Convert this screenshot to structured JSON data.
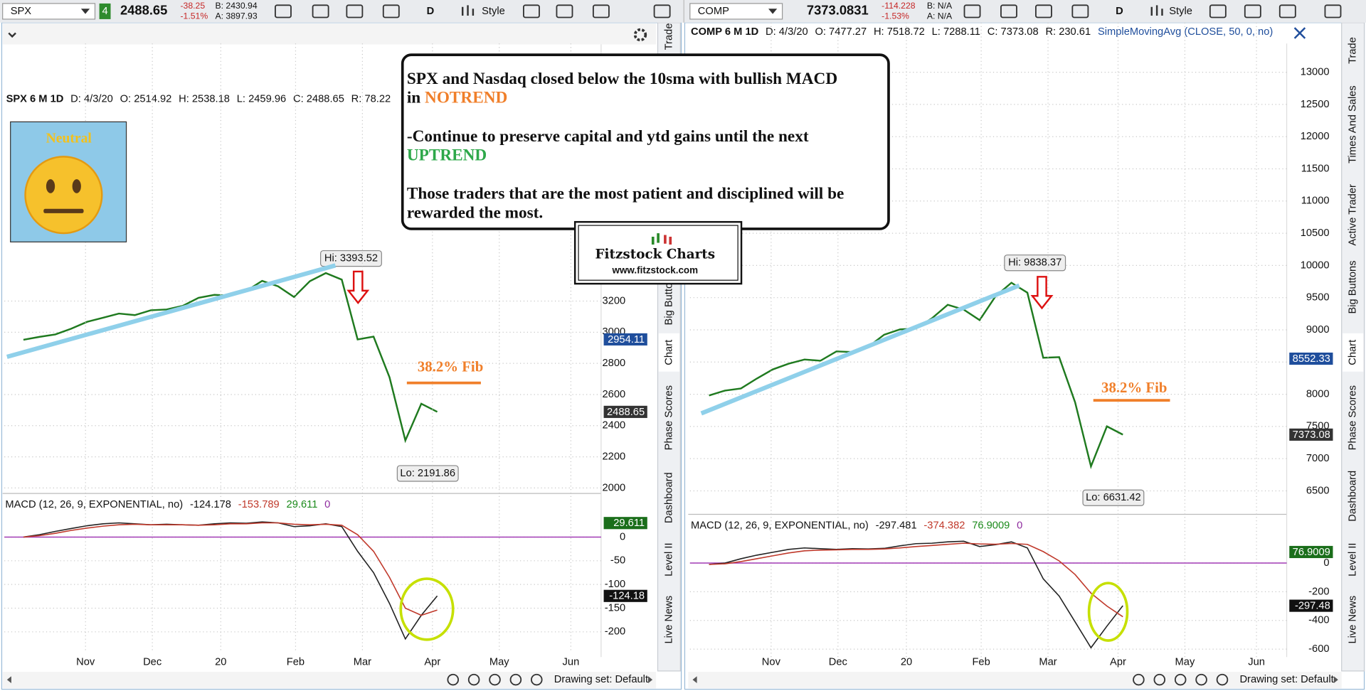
{
  "toolbars": [
    {
      "symbol": "SPX",
      "link": "4",
      "last": "2488.65",
      "change": "-38.25",
      "change_pct": "-1.51%",
      "bid": "B: 2430.94",
      "ask": "A: 3897.93",
      "period": "D",
      "style": "Style"
    },
    {
      "symbol": "COMP",
      "last": "7373.0831",
      "change": "-114.228",
      "change_pct": "-1.53%",
      "bid": "B: N/A",
      "ask": "A: N/A",
      "period": "D",
      "style": "Style"
    }
  ],
  "note": {
    "line1": "SPX and Nasdaq closed below the 10sma with bullish MACD",
    "line2_prefix": "in",
    "notrend": "NOTREND",
    "line3": "-Continue to preserve capital and ytd gains until the next",
    "uptrend": "UPTREND",
    "line5": "Those traders that are the most patient and disciplined will be",
    "line6": "rewarded the most."
  },
  "logo": {
    "title": "Fitzstock Charts",
    "url": "www.fitzstock.com"
  },
  "mood": "Neutral",
  "side_tabs": [
    [
      "Trade",
      "Big Buttons",
      "Chart",
      "Phase Scores",
      "Dashboard",
      "Level II",
      "Live News"
    ],
    [
      "Trade",
      "Times And Sales",
      "Active Trader",
      "Big Buttons",
      "Chart",
      "Phase Scores",
      "Dashboard",
      "Level II",
      "Live News"
    ]
  ],
  "drawing_set": [
    "Drawing set: Default",
    "Drawing set: Default"
  ],
  "chart_data": [
    {
      "type": "line",
      "title": "SPX 6 M 1D",
      "readouts": [
        "D: 4/3/20",
        "O: 2514.92",
        "H: 2538.18",
        "L: 2459.96",
        "C: 2488.65",
        "R: 78.22"
      ],
      "annotations": [
        "Hi: 3393.52",
        "Lo: 2191.86",
        "38.2% Fib"
      ],
      "x": [
        0,
        1,
        2,
        3,
        4,
        5,
        6,
        7,
        8,
        9,
        10,
        11,
        12,
        13,
        14,
        15,
        16,
        17,
        18,
        19,
        20,
        21,
        22,
        23,
        24,
        25,
        26
      ],
      "series": [
        {
          "color": "#1f7a1f",
          "values": [
            2952,
            2970,
            2986,
            3023,
            3067,
            3093,
            3120,
            3110,
            3141,
            3146,
            3169,
            3221,
            3240,
            3235,
            3265,
            3330,
            3295,
            3226,
            3328,
            3380,
            3338,
            2954,
            2972,
            2711,
            2305,
            2541,
            2489
          ]
        }
      ],
      "xlim": [
        -1.2,
        36.3
      ],
      "ylim": [
        1976,
        4407
      ],
      "yticks": [
        2000,
        2200,
        2400,
        2600,
        2800,
        3000,
        3200
      ],
      "badges": [
        {
          "value": 2954.11,
          "label": "2954.11",
          "color": "#1f4e9c"
        },
        {
          "value": 2488.65,
          "label": "2488.65",
          "color": "#333333"
        }
      ]
    },
    {
      "type": "line",
      "title": "MACD (12, 26, 9, EXPONENTIAL, no)",
      "readouts": [
        "-124.178",
        "-153.789",
        "29.611",
        "0"
      ],
      "x": [
        0,
        1,
        2,
        3,
        4,
        5,
        6,
        7,
        8,
        9,
        10,
        11,
        12,
        13,
        14,
        15,
        16,
        17,
        18,
        19,
        20,
        21,
        22,
        23,
        24,
        25,
        26
      ],
      "series": [
        {
          "color": "#222222",
          "values": [
            0,
            5,
            12,
            18,
            24,
            28,
            30,
            28,
            26,
            27,
            26,
            25,
            28,
            30,
            29,
            32,
            30,
            22,
            24,
            28,
            22,
            -30,
            -75,
            -140,
            -215,
            -165,
            -124
          ]
        },
        {
          "color": "#c0392b",
          "values": [
            0,
            3,
            8,
            14,
            19,
            23,
            26,
            27,
            26,
            26,
            26,
            25,
            26,
            28,
            28,
            30,
            30,
            27,
            26,
            27,
            25,
            5,
            -30,
            -85,
            -150,
            -165,
            -154
          ]
        }
      ],
      "xlim": [
        -1.2,
        36.3
      ],
      "ylim": [
        -244,
        59
      ],
      "yticks": [
        -200,
        -150,
        -100,
        -50,
        0
      ],
      "xticks": [
        {
          "value": 3.9,
          "label": "Nov"
        },
        {
          "value": 8.1,
          "label": "Dec"
        },
        {
          "value": 12.4,
          "label": "20"
        },
        {
          "value": 17.1,
          "label": "Feb"
        },
        {
          "value": 21.3,
          "label": "Mar"
        },
        {
          "value": 25.7,
          "label": "Apr"
        },
        {
          "value": 29.9,
          "label": "May"
        },
        {
          "value": 34.4,
          "label": "Jun"
        }
      ],
      "badges": [
        {
          "value": 29.611,
          "label": "29.611",
          "color": "#1a6e1a"
        },
        {
          "value": -124.18,
          "label": "-124.18",
          "color": "#111111"
        }
      ]
    },
    {
      "type": "line",
      "title": "COMP 6 M 1D",
      "readouts": [
        "D: 4/3/20",
        "O: 7477.27",
        "H: 7518.72",
        "L: 7288.11",
        "C: 7373.08",
        "R: 230.61",
        "SimpleMovingAvg (CLOSE, 50, 0, no)"
      ],
      "annotations": [
        "Hi: 9838.37",
        "Lo: 6631.42",
        "38.2% Fib"
      ],
      "x": [
        0,
        1,
        2,
        3,
        4,
        5,
        6,
        7,
        8,
        9,
        10,
        11,
        12,
        13,
        14,
        15,
        16,
        17,
        18,
        19,
        20,
        21,
        22,
        23,
        24,
        25,
        26
      ],
      "series": [
        {
          "color": "#1f7a1f",
          "values": [
            7982,
            8057,
            8090,
            8243,
            8386,
            8475,
            8540,
            8520,
            8665,
            8656,
            8735,
            8925,
            9007,
            9020,
            9179,
            9389,
            9315,
            9151,
            9520,
            9731,
            9577,
            8567,
            8576,
            7875,
            6880,
            7502,
            7373
          ]
        }
      ],
      "xlim": [
        -1.2,
        36.3
      ],
      "ylim": [
        6176,
        13446
      ],
      "yticks": [
        6500,
        7000,
        7500,
        8000,
        8500,
        9000,
        9500,
        10000,
        10500,
        11000,
        11500,
        12000,
        12500,
        13000
      ],
      "badges": [
        {
          "value": 8552.33,
          "label": "8552.33",
          "color": "#1f4e9c"
        },
        {
          "value": 7373.08,
          "label": "7373.08",
          "color": "#333333"
        }
      ]
    },
    {
      "type": "line",
      "title": "MACD (12, 26, 9, EXPONENTIAL, no)",
      "readouts": [
        "-297.481",
        "-374.382",
        "76.9009",
        "0"
      ],
      "x": [
        0,
        1,
        2,
        3,
        4,
        5,
        6,
        7,
        8,
        9,
        10,
        11,
        12,
        13,
        14,
        15,
        16,
        17,
        18,
        19,
        20,
        21,
        22,
        23,
        24,
        25,
        26
      ],
      "series": [
        {
          "color": "#222222",
          "values": [
            -10,
            0,
            30,
            55,
            75,
            95,
            105,
            100,
            95,
            100,
            98,
            102,
            120,
            135,
            138,
            148,
            152,
            115,
            128,
            148,
            105,
            -110,
            -230,
            -410,
            -590,
            -440,
            -297
          ]
        },
        {
          "color": "#c0392b",
          "values": [
            -10,
            -5,
            10,
            30,
            50,
            70,
            85,
            90,
            92,
            95,
            95,
            98,
            105,
            115,
            122,
            130,
            138,
            133,
            131,
            136,
            130,
            80,
            15,
            -80,
            -210,
            -300,
            -374
          ]
        }
      ],
      "xlim": [
        -1.2,
        36.3
      ],
      "ylim": [
        -655,
        212
      ],
      "yticks": [
        -600,
        -400,
        -200,
        0
      ],
      "xticks": [
        {
          "value": 3.9,
          "label": "Nov"
        },
        {
          "value": 8.1,
          "label": "Dec"
        },
        {
          "value": 12.4,
          "label": "20"
        },
        {
          "value": 17.1,
          "label": "Feb"
        },
        {
          "value": 21.3,
          "label": "Mar"
        },
        {
          "value": 25.7,
          "label": "Apr"
        },
        {
          "value": 29.9,
          "label": "May"
        },
        {
          "value": 34.4,
          "label": "Jun"
        }
      ],
      "badges": [
        {
          "value": 76.9009,
          "label": "76.9009",
          "color": "#1a6e1a"
        },
        {
          "value": -297.48,
          "label": "-297.48",
          "color": "#111111"
        }
      ]
    }
  ]
}
